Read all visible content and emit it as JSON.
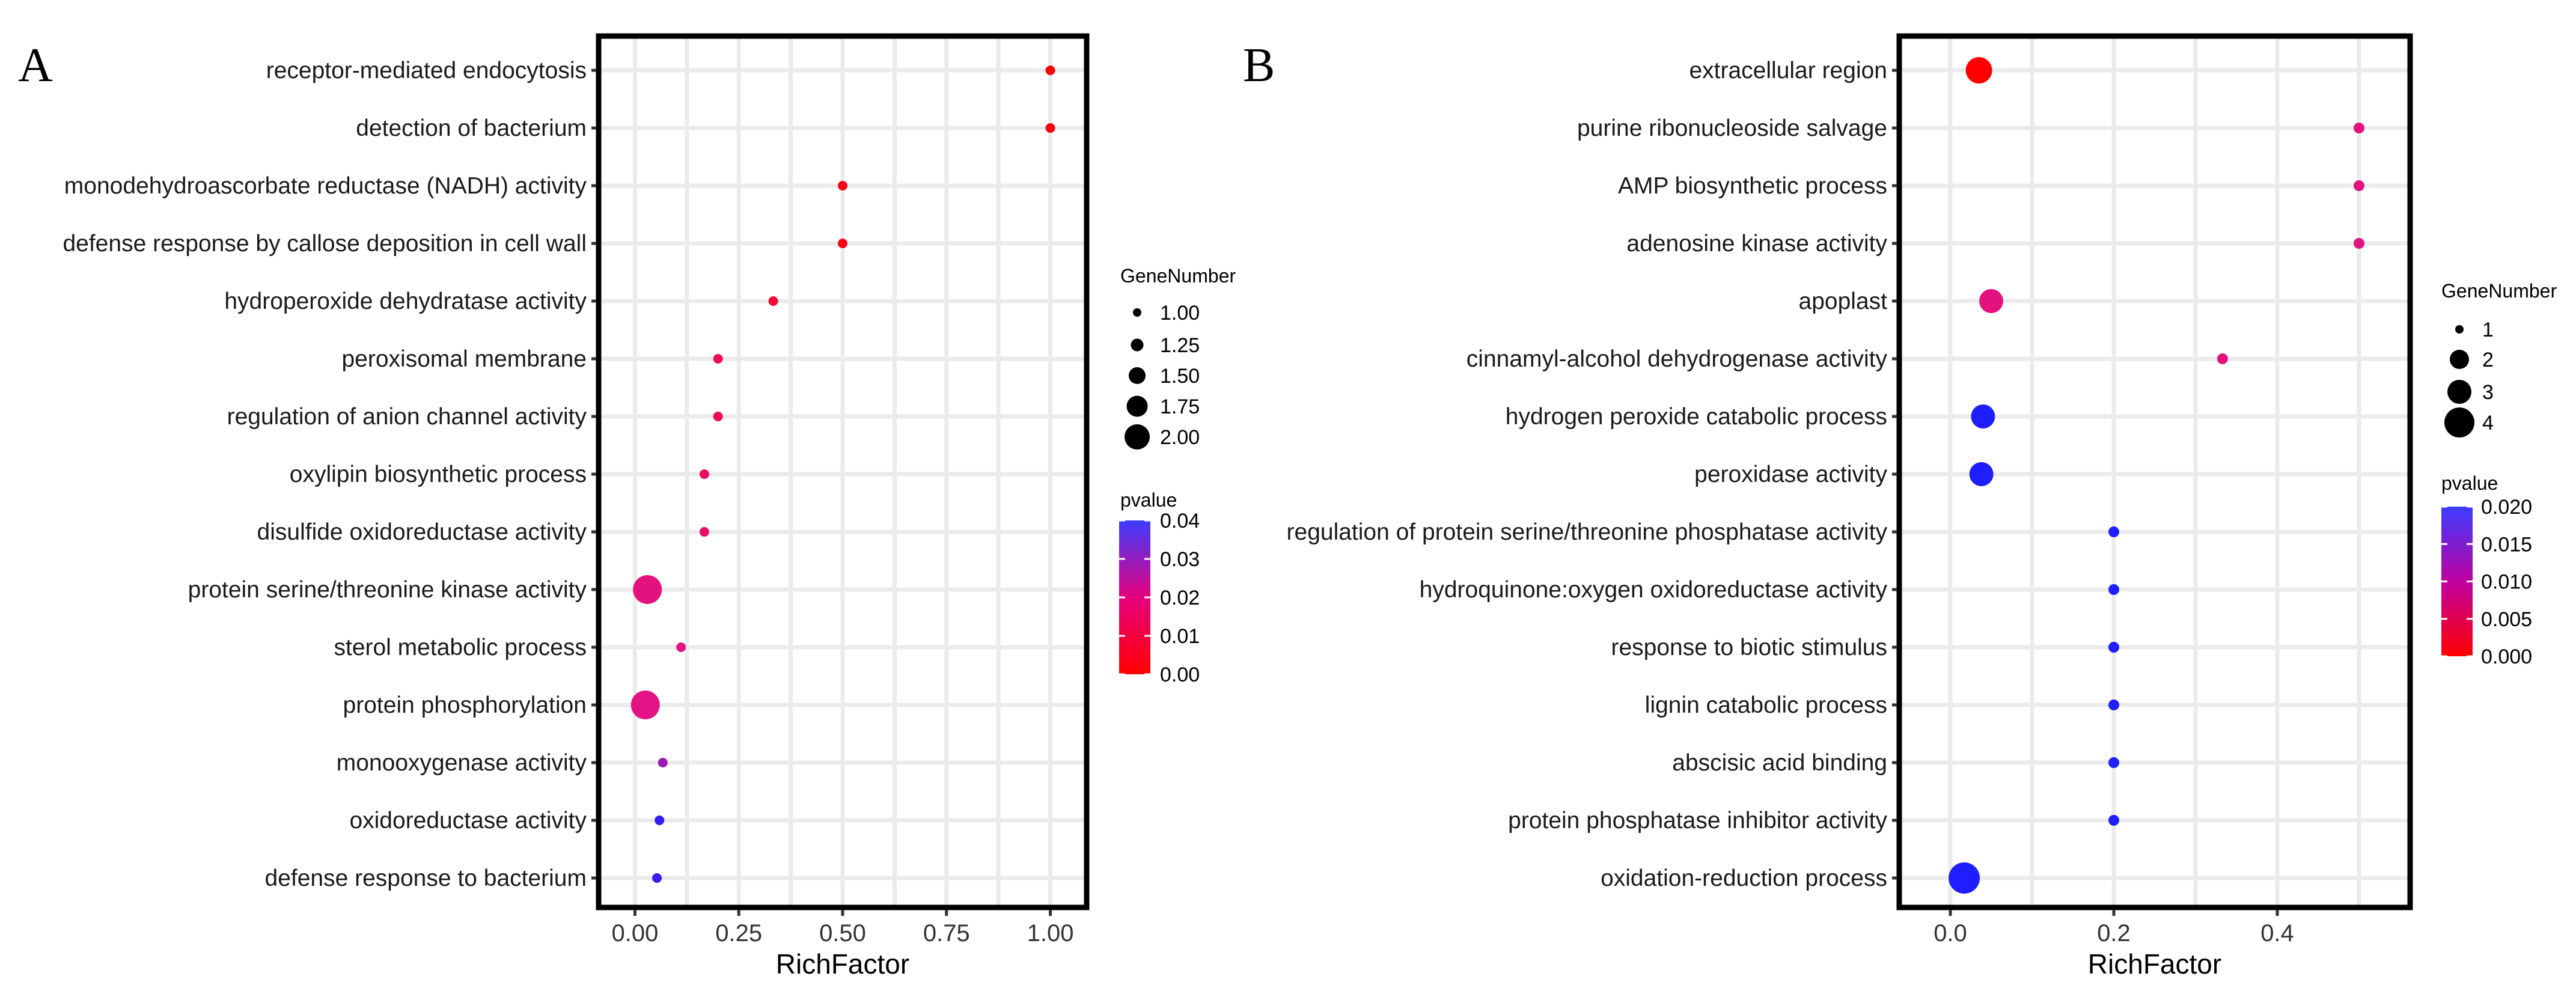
{
  "chart_data": [
    {
      "type": "scatter",
      "panel_label": "A",
      "xlabel": "RichFactor",
      "xlim": [
        -0.0875,
        1.0875
      ],
      "xticks": [
        0.0,
        0.25,
        0.5,
        0.75,
        1.0
      ],
      "xtick_labels": [
        "0.00",
        "0.25",
        "0.50",
        "0.75",
        "1.00"
      ],
      "terms": [
        "receptor-mediated endocytosis",
        "detection of bacterium",
        "monodehydroascorbate reductase (NADH) activity",
        "defense response by callose deposition in cell wall",
        "hydroperoxide dehydratase activity",
        "peroxisomal membrane",
        "regulation of anion channel activity",
        "oxylipin biosynthetic process",
        "disulfide oxidoreductase activity",
        "protein serine/threonine kinase activity",
        "sterol metabolic process",
        "protein phosphorylation",
        "monooxygenase activity",
        "oxidoreductase activity",
        "defense response to bacterium"
      ],
      "rich_factor": [
        1.0,
        1.0,
        0.5,
        0.5,
        0.333,
        0.2,
        0.2,
        0.167,
        0.167,
        0.03,
        0.111,
        0.025,
        0.067,
        0.059,
        0.053
      ],
      "gene_number": [
        1,
        1,
        1,
        1,
        1,
        1,
        1,
        1,
        1,
        2,
        1,
        2,
        1,
        1,
        1
      ],
      "pvalue": [
        0.001,
        0.001,
        0.003,
        0.003,
        0.007,
        0.012,
        0.012,
        0.014,
        0.014,
        0.018,
        0.019,
        0.019,
        0.027,
        0.038,
        0.037
      ],
      "size_legend": {
        "title": "GeneNumber",
        "labels": [
          "1.00",
          "1.25",
          "1.50",
          "1.75",
          "2.00"
        ],
        "values": [
          1.0,
          1.25,
          1.5,
          1.75,
          2.0
        ]
      },
      "color_legend": {
        "title": "pvalue",
        "range": [
          0.0,
          0.04
        ],
        "labels": [
          "0.04",
          "0.03",
          "0.02",
          "0.01",
          "0.00"
        ],
        "values": [
          0.04,
          0.03,
          0.02,
          0.01,
          0.0
        ],
        "low_color": "#ff0000",
        "high_color": "#0000ff"
      }
    },
    {
      "type": "scatter",
      "panel_label": "B",
      "xlabel": "RichFactor",
      "xlim": [
        -0.0625,
        0.5625
      ],
      "xticks": [
        0.0,
        0.2,
        0.4
      ],
      "xtick_labels": [
        "0.0",
        "0.2",
        "0.4"
      ],
      "terms": [
        "extracellular region",
        "purine ribonucleoside salvage",
        "AMP biosynthetic process",
        "adenosine kinase activity",
        "apoplast",
        "cinnamyl-alcohol dehydrogenase activity",
        "hydrogen peroxide catabolic process",
        "peroxidase activity",
        "regulation of protein serine/threonine phosphatase activity",
        "hydroquinone:oxygen oxidoreductase activity",
        "response to biotic stimulus",
        "lignin catabolic process",
        "abscisic acid binding",
        "protein phosphatase inhibitor activity",
        "oxidation-reduction process"
      ],
      "rich_factor": [
        0.035,
        0.5,
        0.5,
        0.5,
        0.05,
        0.333,
        0.04,
        0.038,
        0.2,
        0.2,
        0.2,
        0.2,
        0.2,
        0.2,
        0.017
      ],
      "gene_number": [
        3,
        1,
        1,
        1,
        2,
        1,
        2,
        2,
        1,
        1,
        1,
        1,
        1,
        1,
        4
      ],
      "pvalue": [
        0.0,
        0.009,
        0.009,
        0.009,
        0.009,
        0.009,
        0.02,
        0.02,
        0.02,
        0.02,
        0.02,
        0.02,
        0.02,
        0.02,
        0.02
      ],
      "size_legend": {
        "title": "GeneNumber",
        "labels": [
          "1",
          "2",
          "3",
          "4"
        ],
        "values": [
          1,
          2,
          3,
          4
        ]
      },
      "color_legend": {
        "title": "pvalue",
        "range": [
          0.0,
          0.02
        ],
        "labels": [
          "0.020",
          "0.015",
          "0.010",
          "0.005",
          "0.000"
        ],
        "values": [
          0.02,
          0.015,
          0.01,
          0.005,
          0.0
        ],
        "low_color": "#ff0000",
        "high_color": "#0000ff"
      }
    }
  ]
}
